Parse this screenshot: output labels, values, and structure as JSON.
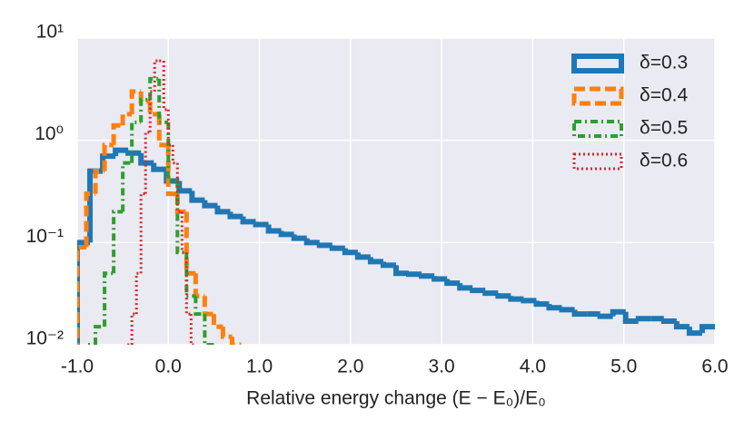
{
  "chart_data": {
    "type": "histogram-step",
    "xlabel": "Relative energy change (E − E₀)/E₀",
    "xlim": [
      -1.0,
      6.0
    ],
    "xticks": [
      {
        "value": -1.0,
        "label": "-1.0"
      },
      {
        "value": 0,
        "label": "0.0"
      },
      {
        "value": 1,
        "label": "1.0"
      },
      {
        "value": 2,
        "label": "2.0"
      },
      {
        "value": 3,
        "label": "3.0"
      },
      {
        "value": 4,
        "label": "4.0"
      },
      {
        "value": 5,
        "label": "5.0"
      },
      {
        "value": 6,
        "label": "6.0"
      }
    ],
    "ylim": [
      0.01,
      10
    ],
    "yticks": [
      {
        "value": 0.01,
        "label": "10⁻²"
      },
      {
        "value": 0.1,
        "label": "10⁻¹"
      },
      {
        "value": 1,
        "label": "10⁰"
      },
      {
        "value": 10,
        "label": "10¹"
      }
    ],
    "log_y": true,
    "grid": true,
    "legend": "upper right",
    "series": [
      {
        "name": "δ=0.3",
        "color": "#1f77b4",
        "bins": [
          -1.0,
          -0.86,
          -0.72,
          -0.58,
          -0.44,
          -0.3,
          -0.16,
          -0.02,
          0.12,
          0.26,
          0.4,
          0.54,
          0.68,
          0.82,
          0.96,
          1.1,
          1.24,
          1.38,
          1.52,
          1.66,
          1.8,
          1.94,
          2.08,
          2.22,
          2.36,
          2.5,
          2.64,
          2.78,
          2.92,
          3.06,
          3.2,
          3.34,
          3.48,
          3.62,
          3.76,
          3.9,
          4.04,
          4.18,
          4.32,
          4.46,
          4.6,
          4.74,
          4.88,
          5.02,
          5.16,
          5.3,
          5.44,
          5.58,
          5.72,
          5.86,
          6.0
        ],
        "values": [
          0.1,
          0.5,
          0.7,
          0.8,
          0.75,
          0.6,
          0.52,
          0.4,
          0.32,
          0.26,
          0.23,
          0.2,
          0.18,
          0.16,
          0.15,
          0.13,
          0.12,
          0.11,
          0.1,
          0.094,
          0.088,
          0.08,
          0.072,
          0.065,
          0.06,
          0.05,
          0.049,
          0.047,
          0.044,
          0.04,
          0.036,
          0.034,
          0.032,
          0.03,
          0.028,
          0.027,
          0.025,
          0.023,
          0.022,
          0.02,
          0.02,
          0.019,
          0.021,
          0.017,
          0.018,
          0.018,
          0.017,
          0.015,
          0.013,
          0.015
        ]
      },
      {
        "name": "δ=0.4",
        "color": "#ff7f0e",
        "bins": [
          -1.0,
          -0.9,
          -0.8,
          -0.7,
          -0.6,
          -0.5,
          -0.4,
          -0.3,
          -0.2,
          -0.1,
          0,
          0.1,
          0.2,
          0.3,
          0.4,
          0.5,
          0.6,
          0.7,
          0.8
        ],
        "values": [
          0.09,
          0.3,
          0.5,
          0.9,
          1.4,
          1.8,
          3,
          2.4,
          1.8,
          0.9,
          0.3,
          0.2,
          0.05,
          0.03,
          0.02,
          0.015,
          0.012,
          0.01
        ]
      },
      {
        "name": "δ=0.5",
        "color": "#2ca02c",
        "bins": [
          -0.9,
          -0.8,
          -0.7,
          -0.6,
          -0.5,
          -0.4,
          -0.3,
          -0.2,
          -0.1,
          0,
          0.1,
          0.2,
          0.3,
          0.4,
          0.5
        ],
        "values": [
          0.01,
          0.015,
          0.05,
          0.2,
          0.6,
          1.5,
          2.5,
          4,
          1.5,
          0.4,
          0.08,
          0.03,
          0.02,
          0.01
        ]
      },
      {
        "name": "δ=0.6",
        "color": "#d62728",
        "bins": [
          -0.45,
          -0.4,
          -0.35,
          -0.3,
          -0.25,
          -0.2,
          -0.15,
          -0.1,
          -0.05,
          0,
          0.05,
          0.1,
          0.15,
          0.2,
          0.25,
          0.3
        ],
        "values": [
          0.01,
          0.02,
          0.05,
          0.3,
          1.2,
          3,
          6,
          6,
          2,
          0.9,
          0.6,
          0.2,
          0.08,
          0.02,
          0.01
        ]
      }
    ]
  }
}
